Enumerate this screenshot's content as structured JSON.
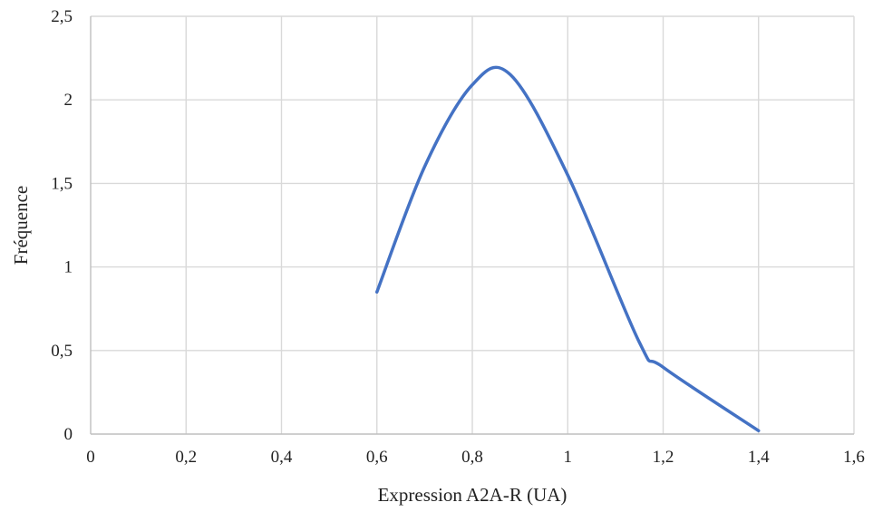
{
  "chart_data": {
    "type": "line",
    "title": "",
    "xlabel": "Expression A2A-R (UA)",
    "ylabel": "Fréquence",
    "xlim": [
      0,
      1.6
    ],
    "ylim": [
      0,
      2.5
    ],
    "x_ticks": [
      0,
      0.2,
      0.4,
      0.6,
      0.8,
      1.0,
      1.2,
      1.4,
      1.6
    ],
    "x_tick_labels": [
      "0",
      "0,2",
      "0,4",
      "0,6",
      "0,8",
      "1",
      "1,2",
      "1,4",
      "1,6"
    ],
    "y_ticks": [
      0,
      0.5,
      1.0,
      1.5,
      2.0,
      2.5
    ],
    "y_tick_labels": [
      "0",
      "0,5",
      "1",
      "1,5",
      "2",
      "2,5"
    ],
    "grid": true,
    "legend": "none",
    "series": [
      {
        "color": "#4472c4",
        "smooth": true,
        "x": [
          0.6,
          0.7,
          0.8,
          0.88,
          1.0,
          1.15,
          1.2,
          1.4
        ],
        "y": [
          0.85,
          1.6,
          2.09,
          2.15,
          1.55,
          0.55,
          0.4,
          0.02
        ]
      }
    ]
  }
}
